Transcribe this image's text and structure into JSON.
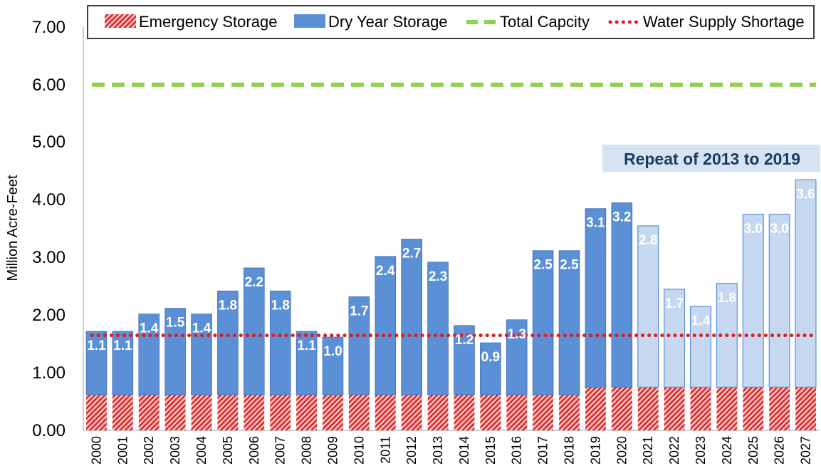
{
  "chart_data": {
    "type": "bar",
    "stacked": true,
    "ylabel": "Million Acre-Feet",
    "ylim": [
      0,
      7
    ],
    "yticks": [
      "0.00",
      "1.00",
      "2.00",
      "3.00",
      "4.00",
      "5.00",
      "6.00",
      "7.00"
    ],
    "categories": [
      "2000",
      "2001",
      "2002",
      "2003",
      "2004",
      "2005",
      "2006",
      "2007",
      "2008",
      "2009",
      "2010",
      "2011",
      "2012",
      "2013",
      "2014",
      "2015",
      "2016",
      "2017",
      "2018",
      "2019",
      "2020",
      "2021",
      "2022",
      "2023",
      "2024",
      "2025",
      "2026",
      "2027"
    ],
    "series": [
      {
        "name": "Emergency Storage",
        "values": [
          0.62,
          0.62,
          0.62,
          0.62,
          0.62,
          0.62,
          0.62,
          0.62,
          0.62,
          0.62,
          0.62,
          0.62,
          0.62,
          0.62,
          0.62,
          0.62,
          0.62,
          0.62,
          0.62,
          0.75,
          0.75,
          0.75,
          0.75,
          0.75,
          0.75,
          0.75,
          0.75,
          0.75
        ]
      },
      {
        "name": "Dry Year Storage",
        "values": [
          1.1,
          1.1,
          1.4,
          1.5,
          1.4,
          1.8,
          2.2,
          1.8,
          1.1,
          1.0,
          1.7,
          2.4,
          2.7,
          2.3,
          1.2,
          0.9,
          1.3,
          2.5,
          2.5,
          3.1,
          3.2,
          2.8,
          1.7,
          1.4,
          1.8,
          3.0,
          3.0,
          3.6
        ],
        "labels": [
          "1.1",
          "1.1",
          "1.4",
          "1.5",
          "1.4",
          "1.8",
          "2.2",
          "1.8",
          "1.1",
          "1.0",
          "1.7",
          "2.4",
          "2.7",
          "2.3",
          "1.2",
          "0.9",
          "1.3",
          "2.5",
          "2.5",
          "3.1",
          "3.2",
          "2.8",
          "1.7",
          "1.4",
          "1.8",
          "3.0",
          "3.0",
          "3.6"
        ]
      },
      {
        "name": "Total Capcity",
        "type": "line",
        "value": 6.0
      },
      {
        "name": "Water Supply Shortage",
        "type": "line",
        "value": 1.65
      }
    ],
    "projected_from": "2021",
    "annotation": "Repeat of 2013 to 2019",
    "legend_position": "top",
    "grid": false,
    "colors": {
      "emergency_base": "#e8aaaa",
      "emergency_hatch": "#e02020",
      "dry_year": "#5b8fd6",
      "dry_year_projected": "#c5d8f0",
      "total_capacity": "#92d050",
      "shortage": "#e41a1c",
      "annotation_bg": "#d6e3f3"
    }
  }
}
